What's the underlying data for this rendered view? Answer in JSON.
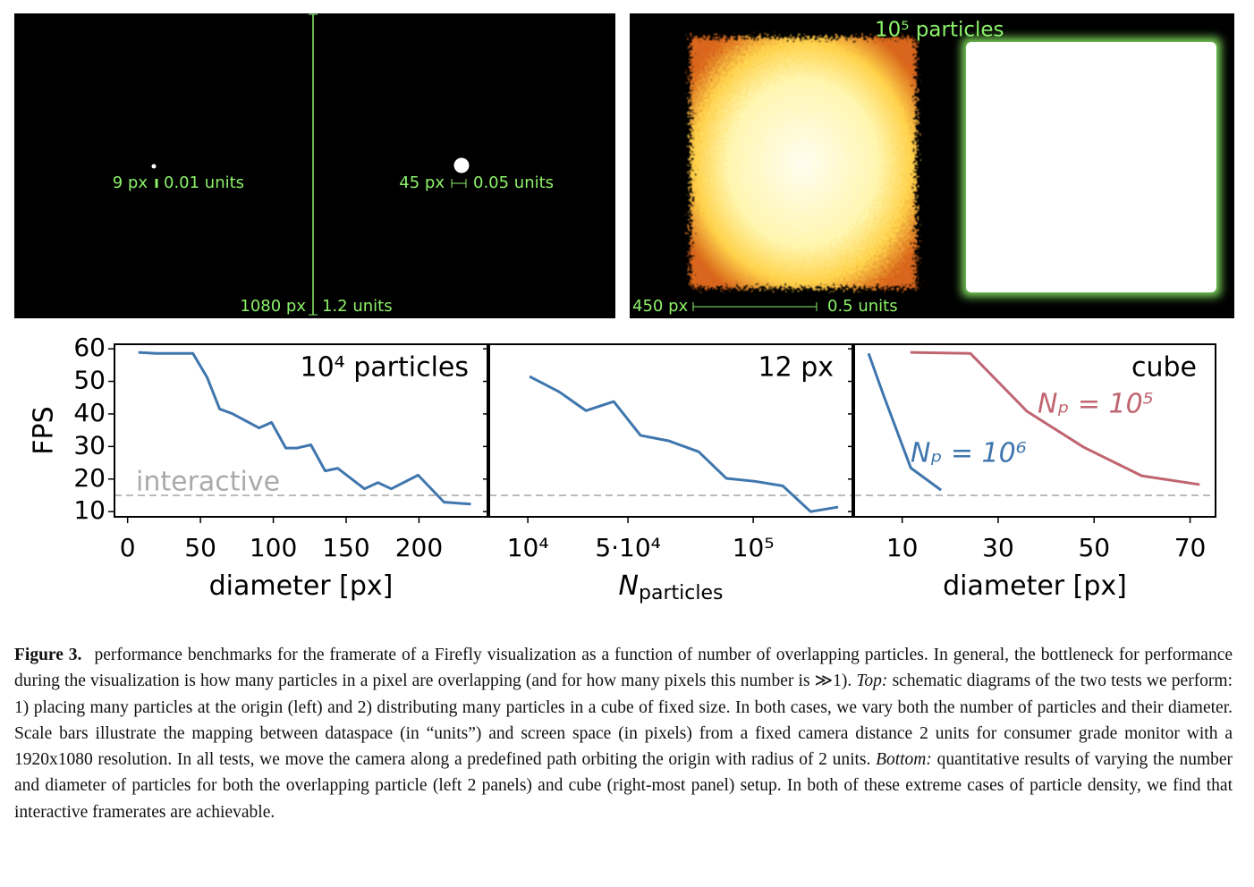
{
  "top_panels": {
    "left": {
      "small_px": "9 px",
      "small_units": "0.01 units",
      "large_px": "45 px",
      "large_units": "0.05 units",
      "height_px": "1080 px",
      "height_units": "1.2 units"
    },
    "right": {
      "title": "10⁵ particles",
      "scale_px": "450 px",
      "scale_units": "0.5 units"
    }
  },
  "chart_data": [
    {
      "type": "line",
      "ylabel": "FPS",
      "xlabel": "diameter [px]",
      "annotation": "10⁴ particles",
      "color": "#3f76ae",
      "x": [
        7.4,
        19.6,
        44.8,
        54.6,
        63.2,
        71.8,
        90.2,
        98.8,
        108.6,
        116,
        125.8,
        135.6,
        144.2,
        162.6,
        171.8,
        181,
        199.4,
        217.2,
        235.6
      ],
      "values": [
        58.9,
        58.6,
        58.6,
        51.2,
        41.5,
        40.1,
        35.7,
        37.4,
        29.5,
        29.5,
        30.5,
        22.5,
        23.3,
        17.0,
        18.9,
        17.0,
        21.2,
        12.9,
        12.3
      ],
      "xlim": [
        -9,
        247
      ],
      "ylim": [
        8.4,
        61.4
      ],
      "xticks": [
        0,
        50,
        100,
        150,
        200
      ],
      "yticks": [
        10,
        20,
        30,
        40,
        50,
        60
      ],
      "hline": 15,
      "hline_label": "interactive"
    },
    {
      "type": "line",
      "xlabel": "N",
      "xlabel_sub": "particles",
      "annotation": "12 px",
      "color": "#3f76ae",
      "x": [
        10700,
        22500,
        33200,
        44300,
        55000,
        66400,
        78200,
        89300,
        100700,
        111800,
        122900,
        133900
      ],
      "values": [
        51.5,
        46.8,
        41.0,
        43.8,
        33.4,
        31.7,
        28.4,
        20.2,
        19.3,
        17.9,
        10.0,
        11.4
      ],
      "xlim": [
        -5400,
        139600
      ],
      "ylim": [
        8.4,
        61.4
      ],
      "xticks": [
        {
          "value": 10000,
          "label": "10⁴"
        },
        {
          "value": 50000,
          "label": "5·10⁴"
        },
        {
          "value": 100000,
          "label": "10⁵"
        }
      ],
      "yticks": [
        10,
        20,
        30,
        40,
        50,
        60
      ],
      "hline": 15
    },
    {
      "type": "line",
      "xlabel": "diameter [px]",
      "annotation": "cube",
      "series": [
        {
          "name": "Nₚ = 10⁵",
          "color": "#c06470",
          "x": [
            11.7,
            24.2,
            36.0,
            47.8,
            59.9,
            72.0
          ],
          "values": [
            58.9,
            58.6,
            40.8,
            29.8,
            21.0,
            18.3
          ]
        },
        {
          "name": "Nₚ = 10⁶",
          "color": "#3f76ae",
          "x": [
            3.0,
            6.2,
            11.8,
            18.1
          ],
          "values": [
            58.6,
            45.4,
            23.4,
            16.6
          ]
        }
      ],
      "xlim": [
        0,
        75.3
      ],
      "ylim": [
        8.4,
        61.4
      ],
      "xticks": [
        10,
        30,
        50,
        70
      ],
      "yticks": [
        10,
        20,
        30,
        40,
        50,
        60
      ],
      "hline": 15
    }
  ],
  "caption": {
    "label": "Figure 3.",
    "segments": [
      "performance benchmarks for the framerate of a Firefly visualization as a function of number of overlapping particles. In general, the bottleneck for performance during the visualization is how many particles in a pixel are overlapping (and for how many pixels this number is ≫1).",
      "Top:",
      "schematic diagrams of the two tests we perform: 1) placing many particles at the origin (left) and 2) distributing many particles in a cube of fixed size. In both cases, we vary both the number of particles and their diameter. Scale bars illustrate the mapping between dataspace (in “units”) and screen space (in pixels) from a fixed camera distance 2 units for consumer grade monitor with a 1920x1080 resolution. In all tests, we move the camera along a predefined path orbiting the origin with radius of 2 units.",
      "Bottom:",
      "quantitative results of varying the number and diameter of particles for both the overlapping particle (left 2 panels) and cube (right-most panel) setup. In both of these extreme cases of particle density, we find that interactive framerates are achievable."
    ]
  }
}
